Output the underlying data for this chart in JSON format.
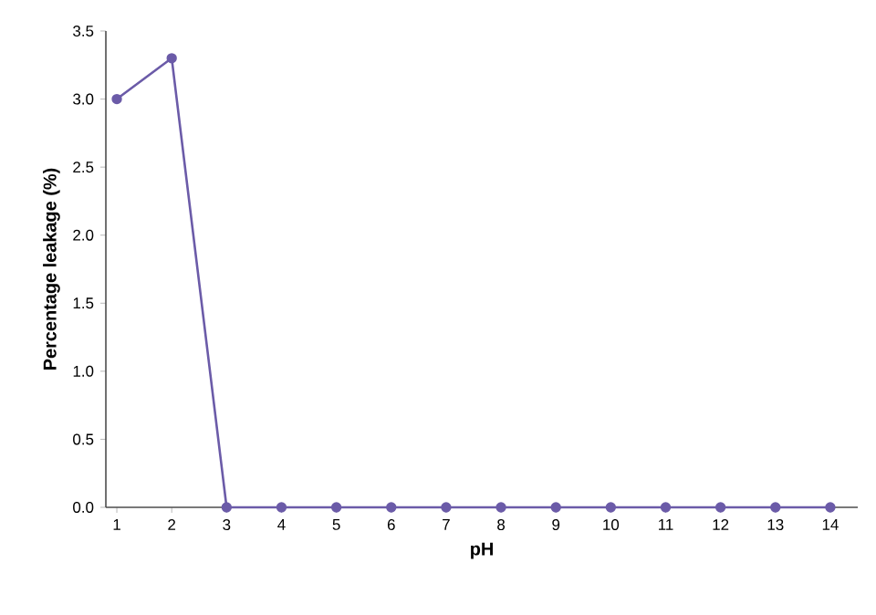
{
  "chart_data": {
    "type": "line",
    "xlabel": "pH",
    "ylabel": "Percentage leakage (%)",
    "x": [
      1,
      2,
      3,
      4,
      5,
      6,
      7,
      8,
      9,
      10,
      11,
      12,
      13,
      14
    ],
    "series": [
      {
        "color": "#6b5ba8",
        "values": [
          3.0,
          3.3,
          0,
          0,
          0,
          0,
          0,
          0,
          0,
          0,
          0,
          0,
          0,
          0
        ]
      }
    ],
    "xlim": [
      0.8,
      14.5
    ],
    "ylim": [
      0,
      3.5
    ],
    "xticks": [
      1,
      2,
      3,
      4,
      5,
      6,
      7,
      8,
      9,
      10,
      11,
      12,
      13,
      14
    ],
    "yticks": [
      {
        "value": 0,
        "label": "0.0"
      },
      {
        "value": 0.5,
        "label": "0.5"
      },
      {
        "value": 1,
        "label": "1.0"
      },
      {
        "value": 1.5,
        "label": "1.5"
      },
      {
        "value": 2,
        "label": "2.0"
      },
      {
        "value": 2.5,
        "label": "2.5"
      },
      {
        "value": 3,
        "label": "3.0"
      },
      {
        "value": 3.5,
        "label": "3.5"
      }
    ],
    "marker": "circle",
    "line_style": "solid"
  }
}
